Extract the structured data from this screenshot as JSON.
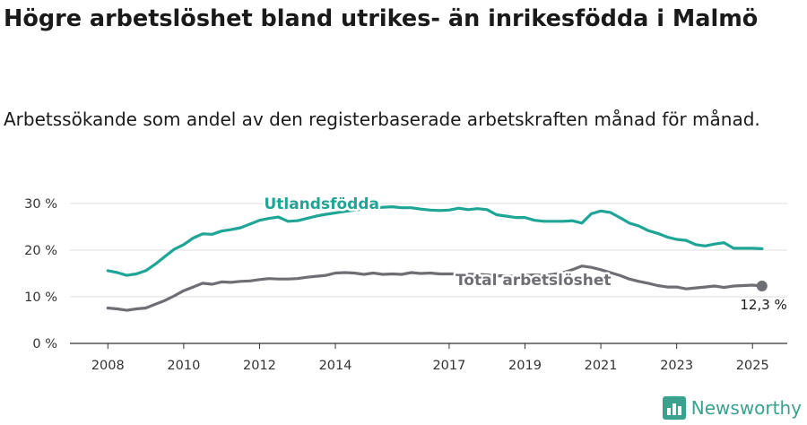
{
  "header": {
    "title": "Högre arbetslöshet bland utrikes- än inrikesfödda i Malmö",
    "subtitle": "Arbetssökande som andel av den registerbaserade arbetskraften månad för månad."
  },
  "brand": {
    "name": "Newsworthy",
    "color": "#3aa18e",
    "icon": "bar-chart-logo-icon"
  },
  "chart_data": {
    "type": "line",
    "x_ticks": [
      "2008",
      "2010",
      "2012",
      "2014",
      "2017",
      "2019",
      "2021",
      "2023",
      "2025"
    ],
    "y_ticks": [
      {
        "value": 0,
        "label": "0 %"
      },
      {
        "value": 10,
        "label": "10 %"
      },
      {
        "value": 20,
        "label": "20 %"
      },
      {
        "value": 30,
        "label": "30 %"
      }
    ],
    "xlim": [
      "2007-01",
      "2025-12"
    ],
    "ylim": [
      0,
      30
    ],
    "grid": "horizontal",
    "series": [
      {
        "name": "Utlandsfödda",
        "color": "#1fa596",
        "points": [
          [
            "2008-01",
            15.6
          ],
          [
            "2008-04",
            15.2
          ],
          [
            "2008-07",
            14.6
          ],
          [
            "2008-10",
            14.9
          ],
          [
            "2009-01",
            15.6
          ],
          [
            "2009-04",
            17.0
          ],
          [
            "2009-07",
            18.6
          ],
          [
            "2009-10",
            20.2
          ],
          [
            "2010-01",
            21.2
          ],
          [
            "2010-04",
            22.6
          ],
          [
            "2010-07",
            23.5
          ],
          [
            "2010-10",
            23.4
          ],
          [
            "2011-01",
            24.1
          ],
          [
            "2011-04",
            24.4
          ],
          [
            "2011-07",
            24.8
          ],
          [
            "2011-10",
            25.6
          ],
          [
            "2012-01",
            26.4
          ],
          [
            "2012-04",
            26.8
          ],
          [
            "2012-07",
            27.1
          ],
          [
            "2012-10",
            26.2
          ],
          [
            "2013-01",
            26.3
          ],
          [
            "2013-04",
            26.8
          ],
          [
            "2013-07",
            27.3
          ],
          [
            "2013-10",
            27.7
          ],
          [
            "2014-01",
            28.0
          ],
          [
            "2014-04",
            28.3
          ],
          [
            "2014-07",
            28.6
          ],
          [
            "2014-10",
            28.8
          ],
          [
            "2015-01",
            29.0
          ],
          [
            "2015-04",
            29.2
          ],
          [
            "2015-07",
            29.3
          ],
          [
            "2015-10",
            29.1
          ],
          [
            "2016-01",
            29.1
          ],
          [
            "2016-04",
            28.8
          ],
          [
            "2016-07",
            28.6
          ],
          [
            "2016-10",
            28.5
          ],
          [
            "2017-01",
            28.6
          ],
          [
            "2017-04",
            29.0
          ],
          [
            "2017-07",
            28.7
          ],
          [
            "2017-10",
            28.9
          ],
          [
            "2018-01",
            28.7
          ],
          [
            "2018-04",
            27.6
          ],
          [
            "2018-07",
            27.3
          ],
          [
            "2018-10",
            27.0
          ],
          [
            "2019-01",
            27.0
          ],
          [
            "2019-04",
            26.4
          ],
          [
            "2019-07",
            26.2
          ],
          [
            "2019-10",
            26.2
          ],
          [
            "2020-01",
            26.2
          ],
          [
            "2020-04",
            26.3
          ],
          [
            "2020-07",
            25.8
          ],
          [
            "2020-10",
            27.8
          ],
          [
            "2021-01",
            28.4
          ],
          [
            "2021-04",
            28.1
          ],
          [
            "2021-07",
            27.0
          ],
          [
            "2021-10",
            25.8
          ],
          [
            "2022-01",
            25.2
          ],
          [
            "2022-04",
            24.2
          ],
          [
            "2022-07",
            23.6
          ],
          [
            "2022-10",
            22.8
          ],
          [
            "2023-01",
            22.3
          ],
          [
            "2023-04",
            22.1
          ],
          [
            "2023-07",
            21.2
          ],
          [
            "2023-10",
            20.9
          ],
          [
            "2024-01",
            21.3
          ],
          [
            "2024-04",
            21.6
          ],
          [
            "2024-07",
            20.4
          ],
          [
            "2024-10",
            20.4
          ],
          [
            "2025-01",
            20.4
          ],
          [
            "2025-04",
            20.3
          ]
        ]
      },
      {
        "name": "Total arbetslöshet",
        "color": "#6e6e75",
        "points": [
          [
            "2008-01",
            7.6
          ],
          [
            "2008-04",
            7.4
          ],
          [
            "2008-07",
            7.1
          ],
          [
            "2008-10",
            7.4
          ],
          [
            "2009-01",
            7.6
          ],
          [
            "2009-04",
            8.4
          ],
          [
            "2009-07",
            9.2
          ],
          [
            "2009-10",
            10.2
          ],
          [
            "2010-01",
            11.3
          ],
          [
            "2010-04",
            12.1
          ],
          [
            "2010-07",
            12.9
          ],
          [
            "2010-10",
            12.7
          ],
          [
            "2011-01",
            13.2
          ],
          [
            "2011-04",
            13.1
          ],
          [
            "2011-07",
            13.3
          ],
          [
            "2011-10",
            13.4
          ],
          [
            "2012-01",
            13.7
          ],
          [
            "2012-04",
            13.9
          ],
          [
            "2012-07",
            13.8
          ],
          [
            "2012-10",
            13.8
          ],
          [
            "2013-01",
            13.9
          ],
          [
            "2013-04",
            14.2
          ],
          [
            "2013-07",
            14.4
          ],
          [
            "2013-10",
            14.6
          ],
          [
            "2014-01",
            15.1
          ],
          [
            "2014-04",
            15.2
          ],
          [
            "2014-07",
            15.1
          ],
          [
            "2014-10",
            14.8
          ],
          [
            "2015-01",
            15.1
          ],
          [
            "2015-04",
            14.8
          ],
          [
            "2015-07",
            14.9
          ],
          [
            "2015-10",
            14.8
          ],
          [
            "2016-01",
            15.2
          ],
          [
            "2016-04",
            15.0
          ],
          [
            "2016-07",
            15.1
          ],
          [
            "2016-10",
            14.9
          ],
          [
            "2017-01",
            14.9
          ],
          [
            "2017-04",
            14.9
          ],
          [
            "2017-07",
            14.8
          ],
          [
            "2017-10",
            14.8
          ],
          [
            "2018-01",
            14.7
          ],
          [
            "2018-04",
            14.5
          ],
          [
            "2018-07",
            14.5
          ],
          [
            "2018-10",
            14.4
          ],
          [
            "2019-01",
            14.6
          ],
          [
            "2019-04",
            14.7
          ],
          [
            "2019-07",
            14.6
          ],
          [
            "2019-10",
            14.8
          ],
          [
            "2020-01",
            15.2
          ],
          [
            "2020-04",
            15.8
          ],
          [
            "2020-07",
            16.6
          ],
          [
            "2020-10",
            16.3
          ],
          [
            "2021-01",
            15.8
          ],
          [
            "2021-04",
            15.2
          ],
          [
            "2021-07",
            14.6
          ],
          [
            "2021-10",
            13.8
          ],
          [
            "2022-01",
            13.3
          ],
          [
            "2022-04",
            12.9
          ],
          [
            "2022-07",
            12.4
          ],
          [
            "2022-10",
            12.1
          ],
          [
            "2023-01",
            12.1
          ],
          [
            "2023-04",
            11.7
          ],
          [
            "2023-07",
            11.9
          ],
          [
            "2023-10",
            12.1
          ],
          [
            "2024-01",
            12.3
          ],
          [
            "2024-04",
            12.0
          ],
          [
            "2024-07",
            12.3
          ],
          [
            "2024-10",
            12.4
          ],
          [
            "2025-01",
            12.5
          ],
          [
            "2025-04",
            12.3
          ]
        ]
      }
    ],
    "end_label": "12,3 %"
  }
}
